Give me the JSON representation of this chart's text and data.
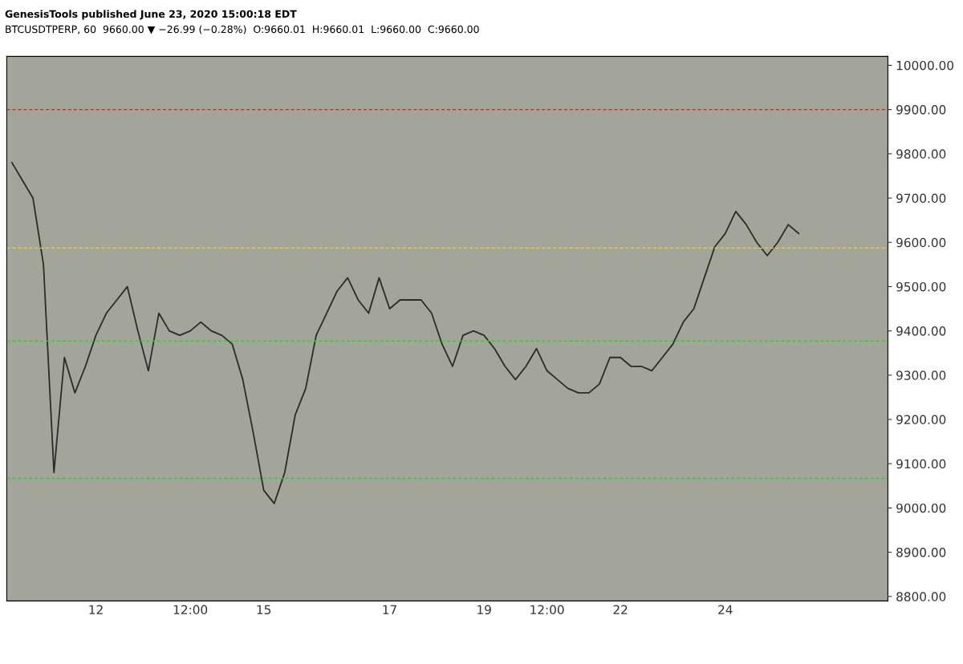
{
  "chart_data": {
    "type": "line",
    "title": "GenesisTools published June 23, 2020 15:00:18 EDT",
    "subtitle": "BTCUSDTPERP, 60  9660.00 ▼ −26.99 (−0.28%)  O:9660.01  H:9660.01  L:9660.00  C:9660.00",
    "categories": [
      null,
      null,
      null,
      null,
      null,
      null,
      null,
      null,
      "12",
      null,
      null,
      null,
      null,
      null,
      null,
      null,
      null,
      "12:00",
      null,
      null,
      null,
      null,
      null,
      null,
      "15",
      null,
      null,
      null,
      null,
      null,
      null,
      null,
      null,
      null,
      null,
      null,
      "17",
      null,
      null,
      null,
      null,
      null,
      null,
      null,
      null,
      "19",
      null,
      null,
      null,
      null,
      null,
      "12:00",
      null,
      null,
      null,
      null,
      null,
      null,
      "22",
      null,
      null,
      null,
      null,
      null,
      null,
      null,
      null,
      null,
      "24",
      null,
      null,
      null,
      null,
      null,
      null,
      null,
      null,
      null,
      null,
      null,
      null,
      null,
      null,
      null
    ],
    "series": [
      {
        "color": "#2b2b2b",
        "values": [
          9780,
          9740,
          9700,
          9550,
          9080,
          9340,
          9260,
          9320,
          9390,
          9440,
          9470,
          9500,
          9400,
          9310,
          9440,
          9400,
          9390,
          9400,
          9420,
          9400,
          9390,
          9370,
          9290,
          9170,
          9040,
          9010,
          9080,
          9210,
          9270,
          9390,
          9440,
          9490,
          9520,
          9470,
          9440,
          9520,
          9450,
          9470,
          9470,
          9470,
          9440,
          9370,
          9320,
          9390,
          9400,
          9390,
          9360,
          9320,
          9290,
          9320,
          9360,
          9310,
          9290,
          9270,
          9260,
          9260,
          9280,
          9340,
          9340,
          9320,
          9320,
          9310,
          9340,
          9370,
          9420,
          9450,
          9520,
          9590,
          9620,
          9670,
          9640,
          9600,
          9570,
          9600,
          9640,
          9620,
          null,
          null,
          null,
          null,
          null,
          null,
          null,
          null
        ]
      }
    ],
    "ylim": [
      8790,
      10020
    ],
    "yticks": [
      {
        "value": 8800,
        "label": "8800.00"
      },
      {
        "value": 8900,
        "label": "8900.00"
      },
      {
        "value": 9000,
        "label": "9000.00"
      },
      {
        "value": 9100,
        "label": "9100.00"
      },
      {
        "value": 9200,
        "label": "9200.00"
      },
      {
        "value": 9300,
        "label": "9300.00"
      },
      {
        "value": 9400,
        "label": "9400.00"
      },
      {
        "value": 9500,
        "label": "9500.00"
      },
      {
        "value": 9600,
        "label": "9600.00"
      },
      {
        "value": 9700,
        "label": "9700.00"
      },
      {
        "value": 9800,
        "label": "9800.00"
      },
      {
        "value": 9900,
        "label": "9900.00"
      },
      {
        "value": 10000,
        "label": "10000.00"
      }
    ],
    "ref_lines": [
      {
        "axis": "y",
        "value": 9900,
        "color": "#e0201c",
        "line_style": "dashed"
      },
      {
        "axis": "y",
        "value": 9587,
        "color": "#f2d21b",
        "line_style": "dashed"
      },
      {
        "axis": "y",
        "value": 9377,
        "color": "#2fd12f",
        "line_style": "dashed"
      },
      {
        "axis": "y",
        "value": 9067,
        "color": "#2fd12f",
        "line_style": "dashed"
      }
    ],
    "grid": false
  }
}
